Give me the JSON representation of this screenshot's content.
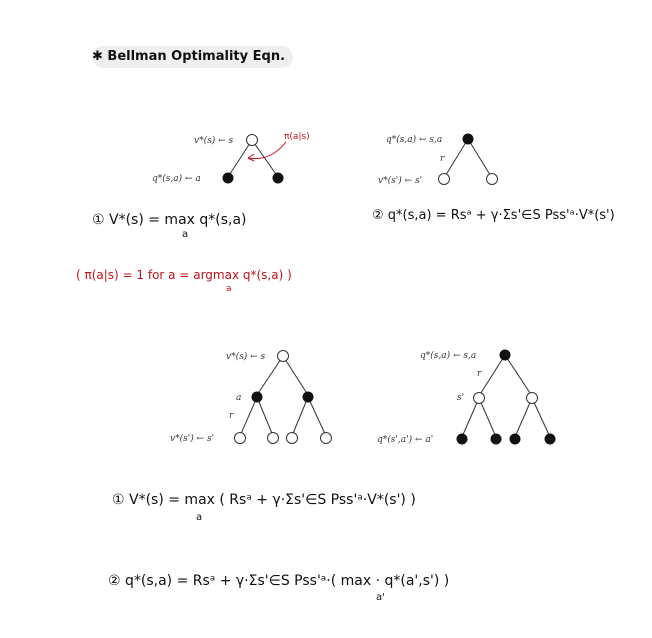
{
  "title": "✱ Bellman Optimality Eqn.",
  "tree1": {
    "root": "v*(s) ← s",
    "action": "q*(s,a) ← a",
    "policy": "π(a|s)"
  },
  "tree2": {
    "root": "q*(s,a) ← s,a",
    "reward": "r",
    "next": "v*(s') ← s'"
  },
  "tree3": {
    "root": "v*(s) ← s",
    "action": "a",
    "reward": "r",
    "next": "v*(s') ← s'"
  },
  "tree4": {
    "root": "q*(s,a) ← s,a",
    "reward": "r",
    "state": "s'",
    "next": "q*(s',a') ← a'"
  },
  "eq1_top": "① V*(s) = max q*(s,a)",
  "eq1_top_sub": "a",
  "eq2_top": "② q*(s,a) = Rsᵃ + γ·Σs'∈S Pss'ᵃ·V*(s')",
  "note": "( π(a|s) = 1 for a = argmax q*(s,a) )",
  "note_sub": "a",
  "eq1_bottom": "① V*(s) = max ( Rsᵃ + γ·Σs'∈S Pss'ᵃ·V*(s') )",
  "eq1_bottom_sub": "a",
  "eq2_bottom": "② q*(s,a) = Rsᵃ + γ·Σs'∈S Pss'ᵃ·( max · q*(a',s') )",
  "eq2_bottom_sub": "a'"
}
